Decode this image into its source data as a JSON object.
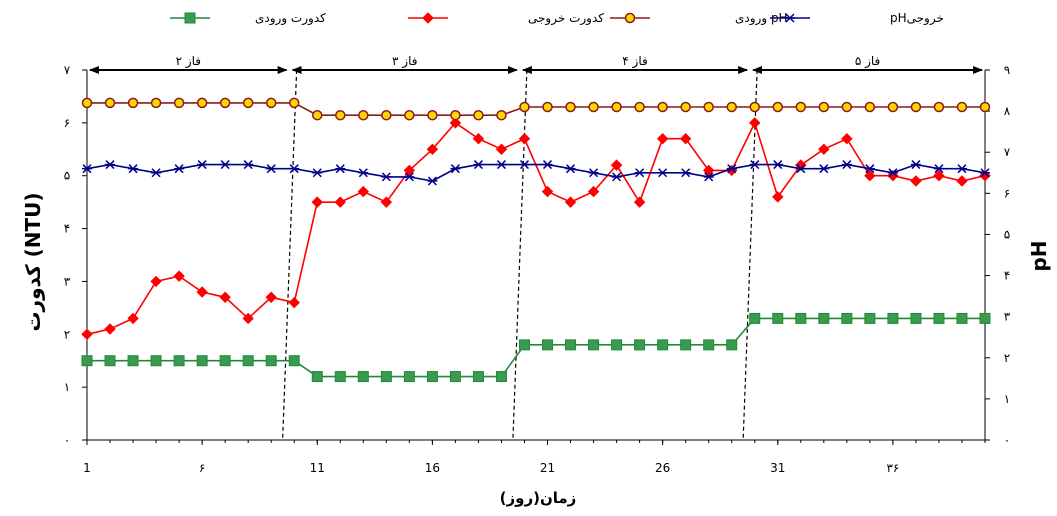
{
  "chart_data": {
    "type": "line",
    "x": [
      1,
      2,
      3,
      4,
      5,
      6,
      7,
      8,
      9,
      10,
      11,
      12,
      13,
      14,
      15,
      16,
      17,
      18,
      19,
      20,
      21,
      22,
      23,
      24,
      25,
      26,
      27,
      28,
      29,
      30,
      31,
      32,
      33,
      34,
      35,
      36,
      37,
      38,
      39,
      40
    ],
    "x_ticks": [
      1,
      6,
      11,
      16,
      21,
      26,
      31,
      36
    ],
    "x_tick_labels": [
      "1",
      "۶",
      "11",
      "16",
      "21",
      "26",
      "31",
      "۳۶"
    ],
    "xlim": [
      1,
      40
    ],
    "xlabel": "زمان(روز)",
    "ylabel": "کدورت (NTU)",
    "ylim": [
      0,
      7
    ],
    "y_ticks": [
      0,
      1,
      2,
      3,
      4,
      5,
      6,
      7
    ],
    "y_tick_labels": [
      "۰",
      "۱",
      "۲",
      "۳",
      "۴",
      "۵",
      "۶",
      "۷"
    ],
    "y2label": "pH",
    "y2lim": [
      0,
      9
    ],
    "y2_ticks": [
      0,
      1,
      2,
      3,
      4,
      5,
      6,
      7,
      8,
      9
    ],
    "y2_tick_labels": [
      "۰",
      "۱",
      "۲",
      "۳",
      "۴",
      "۵",
      "۶",
      "۷",
      "۸",
      "۹"
    ],
    "legend_position": "top",
    "series": [
      {
        "name": "کدورت ورودی",
        "axis": "left",
        "color": "#1e8b3a",
        "marker": "square",
        "marker_fill": "#3a9a50",
        "values": [
          1.5,
          1.5,
          1.5,
          1.5,
          1.5,
          1.5,
          1.5,
          1.5,
          1.5,
          1.5,
          1.2,
          1.2,
          1.2,
          1.2,
          1.2,
          1.2,
          1.2,
          1.2,
          1.2,
          1.8,
          1.8,
          1.8,
          1.8,
          1.8,
          1.8,
          1.8,
          1.8,
          1.8,
          1.8,
          2.3,
          2.3,
          2.3,
          2.3,
          2.3,
          2.3,
          2.3,
          2.3,
          2.3,
          2.3,
          2.3
        ]
      },
      {
        "name": "کدورت خروجی",
        "axis": "left",
        "color": "#ff0000",
        "marker": "diamond",
        "marker_fill": "#ff0000",
        "values": [
          2.0,
          2.1,
          2.3,
          3.0,
          3.1,
          2.8,
          2.7,
          2.3,
          2.7,
          2.6,
          4.5,
          4.5,
          4.7,
          4.5,
          5.1,
          5.5,
          6.0,
          5.7,
          5.5,
          5.7,
          4.7,
          4.5,
          4.7,
          5.2,
          4.5,
          5.7,
          5.7,
          5.1,
          5.1,
          6.0,
          4.6,
          5.2,
          5.5,
          5.7,
          5.0,
          5.0,
          4.9,
          5.0,
          4.9,
          5.0
        ]
      },
      {
        "name": "ورودی pH",
        "axis": "right",
        "color": "#8b1a1a",
        "marker": "circle",
        "marker_fill": "#ffd700",
        "values": [
          8.2,
          8.2,
          8.2,
          8.2,
          8.2,
          8.2,
          8.2,
          8.2,
          8.2,
          8.2,
          7.9,
          7.9,
          7.9,
          7.9,
          7.9,
          7.9,
          7.9,
          7.9,
          7.9,
          8.1,
          8.1,
          8.1,
          8.1,
          8.1,
          8.1,
          8.1,
          8.1,
          8.1,
          8.1,
          8.1,
          8.1,
          8.1,
          8.1,
          8.1,
          8.1,
          8.1,
          8.1,
          8.1,
          8.1,
          8.1
        ]
      },
      {
        "name": "pHخروجی",
        "axis": "right",
        "color": "#00008b",
        "marker": "star",
        "marker_fill": "#00008b",
        "values": [
          6.6,
          6.7,
          6.6,
          6.5,
          6.6,
          6.7,
          6.7,
          6.7,
          6.6,
          6.6,
          6.5,
          6.6,
          6.5,
          6.4,
          6.4,
          6.3,
          6.6,
          6.7,
          6.7,
          6.7,
          6.7,
          6.6,
          6.5,
          6.4,
          6.5,
          6.5,
          6.5,
          6.4,
          6.6,
          6.7,
          6.7,
          6.6,
          6.6,
          6.7,
          6.6,
          6.5,
          6.7,
          6.6,
          6.6,
          6.5
        ]
      }
    ],
    "phases": [
      {
        "label": "فاز ۲",
        "from": 1,
        "to": 9.8
      },
      {
        "label": "فاز ۳",
        "from": 9.8,
        "to": 19.8
      },
      {
        "label": "فاز ۴",
        "from": 19.8,
        "to": 29.8
      },
      {
        "label": "فاز ۵",
        "from": 29.8,
        "to": 40
      }
    ],
    "phase_dividers": [
      9.8,
      19.8,
      29.8
    ],
    "grid": false
  }
}
